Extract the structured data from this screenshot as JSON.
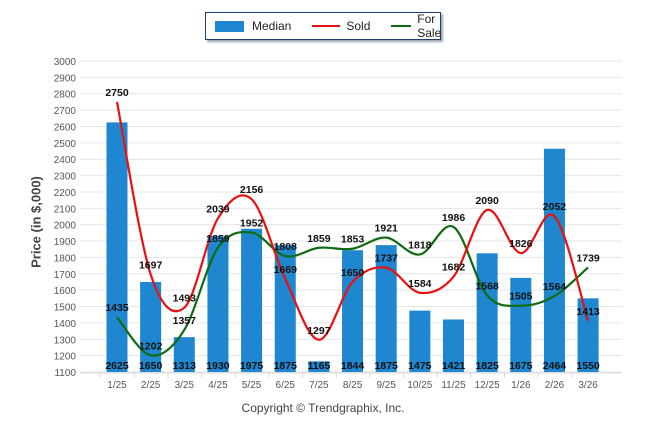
{
  "legend": {
    "median": "Median",
    "sold": "Sold",
    "for_sale": "For Sale"
  },
  "footer": "Copyright © Trendgraphix, Inc.",
  "chart_data": {
    "type": "bar",
    "title": "",
    "xlabel": "",
    "ylabel": "Price (in $,000)",
    "ylim": [
      1100,
      3000
    ],
    "yticks": [
      1100,
      1200,
      1300,
      1400,
      1500,
      1600,
      1700,
      1800,
      1900,
      2000,
      2100,
      2200,
      2300,
      2400,
      2500,
      2600,
      2700,
      2800,
      2900,
      3000
    ],
    "grid": true,
    "legend_position": "top-center",
    "categories": [
      "1/25",
      "2/25",
      "3/25",
      "4/25",
      "5/25",
      "6/25",
      "7/25",
      "8/25",
      "9/25",
      "10/25",
      "11/25",
      "12/25",
      "1/26",
      "2/26",
      "3/26"
    ],
    "series": [
      {
        "name": "Median",
        "type": "bar",
        "color": "#1f87d0",
        "values": [
          2625,
          1650,
          1313,
          1930,
          1975,
          1875,
          1165,
          1844,
          1875,
          1475,
          1421,
          1825,
          1675,
          2464,
          1550
        ]
      },
      {
        "name": "Sold",
        "type": "line",
        "color": "#e81010",
        "values": [
          2750,
          1697,
          1493,
          2039,
          2156,
          1669,
          1297,
          1650,
          1737,
          1584,
          1682,
          2090,
          1826,
          2052,
          1413
        ]
      },
      {
        "name": "For Sale",
        "type": "line",
        "color": "#0f6b0f",
        "values": [
          1435,
          1202,
          1357,
          1859,
          1952,
          1808,
          1859,
          1853,
          1921,
          1818,
          1986,
          1568,
          1505,
          1564,
          1739
        ]
      }
    ]
  }
}
